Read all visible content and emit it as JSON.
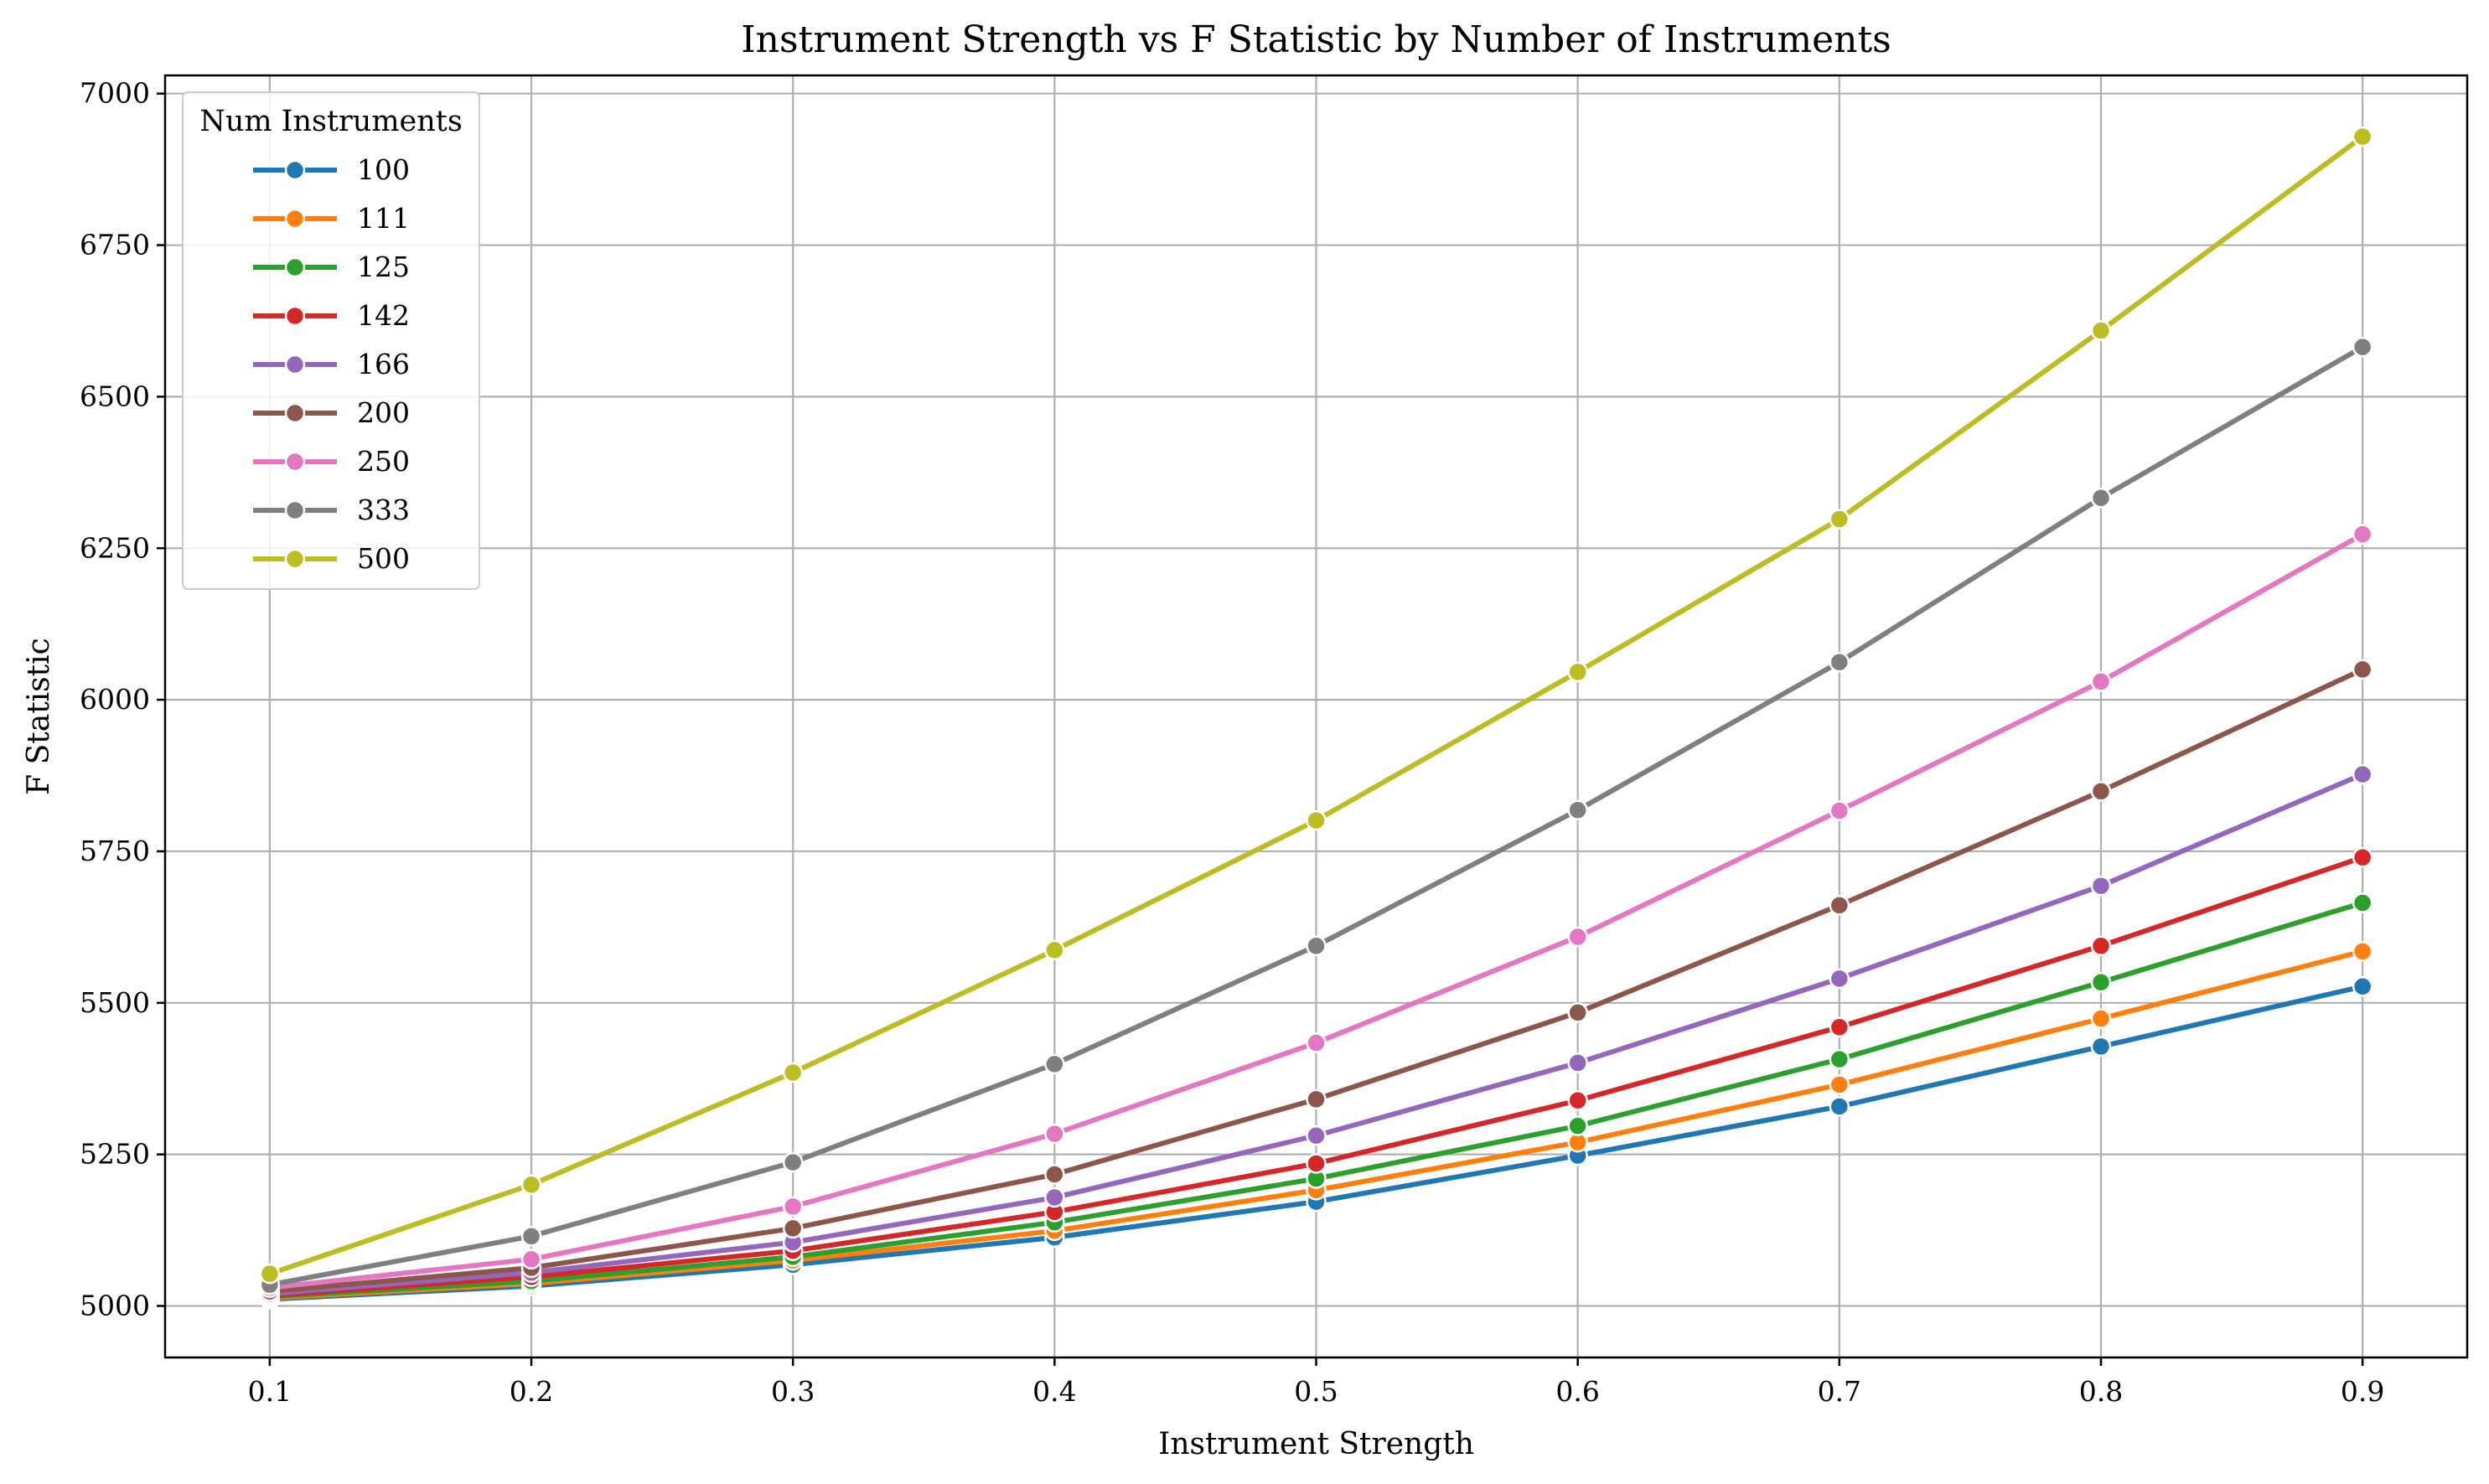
{
  "chart_data": {
    "type": "line",
    "title": "Instrument Strength vs F Statistic by Number of Instruments",
    "xlabel": "Instrument Strength",
    "ylabel": "F Statistic",
    "x": [
      0.1,
      0.2,
      0.3,
      0.4,
      0.5,
      0.6,
      0.7,
      0.8,
      0.9
    ],
    "xlim": [
      0.06,
      0.94
    ],
    "ylim": [
      4915,
      7030
    ],
    "xticks": [
      0.1,
      0.2,
      0.3,
      0.4,
      0.5,
      0.6,
      0.7,
      0.8,
      0.9
    ],
    "yticks": [
      5000,
      5250,
      5500,
      5750,
      6000,
      6250,
      6500,
      6750,
      7000
    ],
    "xtick_labels": [
      "0.1",
      "0.2",
      "0.3",
      "0.4",
      "0.5",
      "0.6",
      "0.7",
      "0.8",
      "0.9"
    ],
    "ytick_labels": [
      "5000",
      "5250",
      "5500",
      "5750",
      "6000",
      "6250",
      "6500",
      "6750",
      "7000"
    ],
    "grid": true,
    "legend": {
      "title": "Num Instruments",
      "position": "top-left"
    },
    "series": [
      {
        "name": "100",
        "color": "#1f77b4",
        "values": [
          5011,
          5033,
          5068,
          5113,
          5172,
          5248,
          5329,
          5428,
          5527
        ]
      },
      {
        "name": "111",
        "color": "#ff7f0e",
        "values": [
          5013,
          5037,
          5075,
          5124,
          5191,
          5270,
          5365,
          5474,
          5585
        ]
      },
      {
        "name": "125",
        "color": "#2ca02c",
        "values": [
          5015,
          5041,
          5081,
          5138,
          5210,
          5297,
          5407,
          5534,
          5665
        ]
      },
      {
        "name": "142",
        "color": "#d62728",
        "values": [
          5017,
          5048,
          5091,
          5155,
          5235,
          5339,
          5460,
          5594,
          5740
        ]
      },
      {
        "name": "166",
        "color": "#9467bd",
        "values": [
          5020,
          5055,
          5105,
          5179,
          5281,
          5401,
          5540,
          5693,
          5877
        ]
      },
      {
        "name": "200",
        "color": "#8c564b",
        "values": [
          5024,
          5063,
          5128,
          5217,
          5341,
          5484,
          5661,
          5849,
          6050
        ]
      },
      {
        "name": "250",
        "color": "#e377c2",
        "values": [
          5030,
          5077,
          5164,
          5284,
          5434,
          5609,
          5817,
          6030,
          6273
        ]
      },
      {
        "name": "333",
        "color": "#7f7f7f",
        "values": [
          5035,
          5115,
          5237,
          5399,
          5594,
          5818,
          6062,
          6333,
          6582
        ]
      },
      {
        "name": "500",
        "color": "#bcbd22",
        "values": [
          5053,
          5200,
          5385,
          5587,
          5801,
          6046,
          6298,
          6609,
          6929
        ]
      }
    ]
  }
}
